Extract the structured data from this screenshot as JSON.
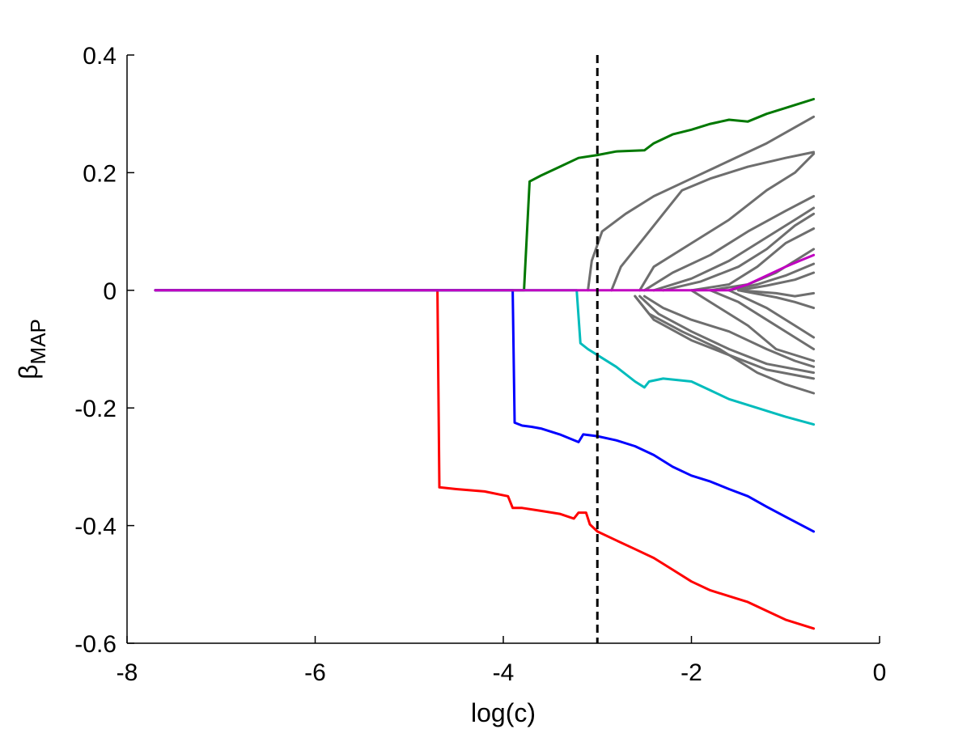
{
  "chart_data": {
    "type": "line",
    "xlabel": "log(c)",
    "ylabel_main": "β",
    "ylabel_sub": "MAP",
    "xlim": [
      -8,
      0
    ],
    "ylim": [
      -0.6,
      0.4
    ],
    "xticks": [
      {
        "value": -8,
        "label": "-8"
      },
      {
        "value": -6,
        "label": "-6"
      },
      {
        "value": -4,
        "label": "-4"
      },
      {
        "value": -2,
        "label": "-2"
      },
      {
        "value": 0,
        "label": "0"
      }
    ],
    "yticks": [
      {
        "value": 0.4,
        "label": "0.4"
      },
      {
        "value": 0.2,
        "label": "0.2"
      },
      {
        "value": 0,
        "label": "0"
      },
      {
        "value": -0.2,
        "label": "-0.2"
      },
      {
        "value": -0.4,
        "label": "-0.4"
      },
      {
        "value": -0.6,
        "label": "-0.6"
      }
    ],
    "reference_line": {
      "x": -3.0,
      "style": "dashed",
      "color": "#000000"
    },
    "colors": {
      "green": "#007800",
      "red": "#ff0000",
      "blue": "#0000ff",
      "cyan": "#00bcbc",
      "magenta": "#c000c0",
      "grey": "#6e6e6e"
    },
    "series": [
      {
        "color": "#6e6e6e",
        "points": [
          [
            -3.1,
            0
          ],
          [
            -3.06,
            0.05
          ],
          [
            -2.95,
            0.1
          ],
          [
            -2.7,
            0.13
          ],
          [
            -2.4,
            0.16
          ],
          [
            -2.0,
            0.19
          ],
          [
            -1.6,
            0.22
          ],
          [
            -1.2,
            0.25
          ],
          [
            -0.7,
            0.295
          ]
        ]
      },
      {
        "color": "#6e6e6e",
        "points": [
          [
            -2.85,
            0
          ],
          [
            -2.75,
            0.04
          ],
          [
            -2.5,
            0.09
          ],
          [
            -2.3,
            0.13
          ],
          [
            -2.1,
            0.17
          ],
          [
            -1.8,
            0.19
          ],
          [
            -1.4,
            0.21
          ],
          [
            -1.0,
            0.225
          ],
          [
            -0.7,
            0.235
          ]
        ]
      },
      {
        "color": "#6e6e6e",
        "points": [
          [
            -2.55,
            0
          ],
          [
            -2.4,
            0.04
          ],
          [
            -2.0,
            0.08
          ],
          [
            -1.6,
            0.12
          ],
          [
            -1.2,
            0.17
          ],
          [
            -0.9,
            0.2
          ],
          [
            -0.7,
            0.232
          ]
        ]
      },
      {
        "color": "#6e6e6e",
        "points": [
          [
            -2.5,
            0
          ],
          [
            -2.2,
            0.03
          ],
          [
            -1.8,
            0.06
          ],
          [
            -1.4,
            0.1
          ],
          [
            -1.0,
            0.135
          ],
          [
            -0.7,
            0.16
          ]
        ]
      },
      {
        "color": "#6e6e6e",
        "points": [
          [
            -2.4,
            0
          ],
          [
            -2.0,
            0.02
          ],
          [
            -1.6,
            0.05
          ],
          [
            -1.2,
            0.09
          ],
          [
            -0.9,
            0.12
          ],
          [
            -0.7,
            0.14
          ]
        ]
      },
      {
        "color": "#6e6e6e",
        "points": [
          [
            -2.3,
            0
          ],
          [
            -1.9,
            0.015
          ],
          [
            -1.5,
            0.04
          ],
          [
            -1.2,
            0.07
          ],
          [
            -0.9,
            0.11
          ],
          [
            -0.7,
            0.13
          ]
        ]
      },
      {
        "color": "#6e6e6e",
        "points": [
          [
            -2.0,
            0
          ],
          [
            -1.6,
            0.01
          ],
          [
            -1.3,
            0.04
          ],
          [
            -1.0,
            0.08
          ],
          [
            -0.7,
            0.105
          ]
        ]
      },
      {
        "color": "#6e6e6e",
        "points": [
          [
            -1.8,
            0
          ],
          [
            -1.4,
            0.01
          ],
          [
            -1.1,
            0.03
          ],
          [
            -0.9,
            0.05
          ],
          [
            -0.7,
            0.07
          ]
        ]
      },
      {
        "color": "#6e6e6e",
        "points": [
          [
            -1.6,
            0
          ],
          [
            -1.3,
            0.01
          ],
          [
            -1.0,
            0.025
          ],
          [
            -0.7,
            0.045
          ]
        ]
      },
      {
        "color": "#6e6e6e",
        "points": [
          [
            -1.5,
            0
          ],
          [
            -1.2,
            0.008
          ],
          [
            -0.9,
            0.018
          ],
          [
            -0.7,
            0.03
          ]
        ]
      },
      {
        "color": "#6e6e6e",
        "points": [
          [
            -1.5,
            0
          ],
          [
            -1.1,
            -0.005
          ],
          [
            -0.9,
            -0.01
          ],
          [
            -0.7,
            -0.005
          ]
        ]
      },
      {
        "color": "#6e6e6e",
        "points": [
          [
            -1.5,
            0
          ],
          [
            -1.1,
            -0.012
          ],
          [
            -0.9,
            -0.02
          ],
          [
            -0.7,
            -0.03
          ]
        ]
      },
      {
        "color": "#6e6e6e",
        "points": [
          [
            -1.6,
            0
          ],
          [
            -1.2,
            -0.03
          ],
          [
            -0.9,
            -0.06
          ],
          [
            -0.7,
            -0.08
          ]
        ]
      },
      {
        "color": "#6e6e6e",
        "points": [
          [
            -1.8,
            0
          ],
          [
            -1.5,
            -0.02
          ],
          [
            -1.2,
            -0.05
          ],
          [
            -0.9,
            -0.08
          ],
          [
            -0.7,
            -0.1
          ]
        ]
      },
      {
        "color": "#6e6e6e",
        "points": [
          [
            -2.0,
            0
          ],
          [
            -1.7,
            -0.03
          ],
          [
            -1.4,
            -0.06
          ],
          [
            -1.1,
            -0.1
          ],
          [
            -0.7,
            -0.12
          ]
        ]
      },
      {
        "color": "#6e6e6e",
        "points": [
          [
            -2.5,
            -0.01
          ],
          [
            -2.3,
            -0.03
          ],
          [
            -2.0,
            -0.05
          ],
          [
            -1.6,
            -0.07
          ],
          [
            -1.2,
            -0.1
          ],
          [
            -0.9,
            -0.12
          ],
          [
            -0.7,
            -0.13
          ]
        ]
      },
      {
        "color": "#6e6e6e",
        "points": [
          [
            -2.55,
            -0.01
          ],
          [
            -2.35,
            -0.04
          ],
          [
            -2.0,
            -0.07
          ],
          [
            -1.6,
            -0.1
          ],
          [
            -1.2,
            -0.125
          ],
          [
            -0.7,
            -0.14
          ]
        ]
      },
      {
        "color": "#6e6e6e",
        "points": [
          [
            -2.6,
            -0.01
          ],
          [
            -2.4,
            -0.05
          ],
          [
            -2.0,
            -0.085
          ],
          [
            -1.6,
            -0.11
          ],
          [
            -1.2,
            -0.135
          ],
          [
            -0.7,
            -0.15
          ]
        ]
      },
      {
        "color": "#6e6e6e",
        "points": [
          [
            -2.6,
            -0.01
          ],
          [
            -2.45,
            -0.04
          ],
          [
            -2.1,
            -0.07
          ],
          [
            -1.7,
            -0.1
          ],
          [
            -1.3,
            -0.14
          ],
          [
            -1.0,
            -0.16
          ],
          [
            -0.7,
            -0.175
          ]
        ]
      },
      {
        "color": "#007800",
        "points": [
          [
            -7.7,
            0
          ],
          [
            -3.78,
            0
          ],
          [
            -3.72,
            0.185
          ],
          [
            -3.6,
            0.195
          ],
          [
            -3.4,
            0.21
          ],
          [
            -3.2,
            0.225
          ],
          [
            -3.0,
            0.23
          ],
          [
            -2.8,
            0.236
          ],
          [
            -2.5,
            0.238
          ],
          [
            -2.4,
            0.25
          ],
          [
            -2.2,
            0.265
          ],
          [
            -2.0,
            0.273
          ],
          [
            -1.8,
            0.283
          ],
          [
            -1.6,
            0.29
          ],
          [
            -1.4,
            0.287
          ],
          [
            -1.2,
            0.3
          ],
          [
            -1.0,
            0.31
          ],
          [
            -0.7,
            0.325
          ]
        ]
      },
      {
        "color": "#ff0000",
        "points": [
          [
            -7.7,
            0
          ],
          [
            -4.7,
            0
          ],
          [
            -4.68,
            -0.335
          ],
          [
            -4.5,
            -0.338
          ],
          [
            -4.2,
            -0.342
          ],
          [
            -3.95,
            -0.35
          ],
          [
            -3.9,
            -0.37
          ],
          [
            -3.8,
            -0.37
          ],
          [
            -3.6,
            -0.375
          ],
          [
            -3.4,
            -0.38
          ],
          [
            -3.25,
            -0.388
          ],
          [
            -3.2,
            -0.378
          ],
          [
            -3.12,
            -0.378
          ],
          [
            -3.08,
            -0.398
          ],
          [
            -3.0,
            -0.41
          ],
          [
            -2.8,
            -0.425
          ],
          [
            -2.6,
            -0.44
          ],
          [
            -2.4,
            -0.455
          ],
          [
            -2.2,
            -0.475
          ],
          [
            -2.0,
            -0.495
          ],
          [
            -1.8,
            -0.51
          ],
          [
            -1.6,
            -0.52
          ],
          [
            -1.4,
            -0.53
          ],
          [
            -1.2,
            -0.545
          ],
          [
            -1.0,
            -0.56
          ],
          [
            -0.7,
            -0.575
          ]
        ]
      },
      {
        "color": "#0000ff",
        "points": [
          [
            -7.7,
            0
          ],
          [
            -3.9,
            0
          ],
          [
            -3.88,
            -0.225
          ],
          [
            -3.8,
            -0.23
          ],
          [
            -3.7,
            -0.232
          ],
          [
            -3.6,
            -0.235
          ],
          [
            -3.4,
            -0.245
          ],
          [
            -3.2,
            -0.258
          ],
          [
            -3.15,
            -0.245
          ],
          [
            -3.0,
            -0.248
          ],
          [
            -2.8,
            -0.255
          ],
          [
            -2.6,
            -0.265
          ],
          [
            -2.4,
            -0.28
          ],
          [
            -2.2,
            -0.3
          ],
          [
            -2.0,
            -0.315
          ],
          [
            -1.8,
            -0.325
          ],
          [
            -1.6,
            -0.338
          ],
          [
            -1.4,
            -0.35
          ],
          [
            -1.2,
            -0.368
          ],
          [
            -1.0,
            -0.385
          ],
          [
            -0.7,
            -0.41
          ]
        ]
      },
      {
        "color": "#00bcbc",
        "points": [
          [
            -7.7,
            0
          ],
          [
            -3.22,
            0
          ],
          [
            -3.18,
            -0.09
          ],
          [
            -3.1,
            -0.1
          ],
          [
            -3.0,
            -0.11
          ],
          [
            -2.8,
            -0.13
          ],
          [
            -2.6,
            -0.155
          ],
          [
            -2.5,
            -0.165
          ],
          [
            -2.45,
            -0.155
          ],
          [
            -2.3,
            -0.15
          ],
          [
            -2.0,
            -0.155
          ],
          [
            -1.8,
            -0.17
          ],
          [
            -1.6,
            -0.185
          ],
          [
            -1.4,
            -0.195
          ],
          [
            -1.2,
            -0.205
          ],
          [
            -1.0,
            -0.215
          ],
          [
            -0.7,
            -0.228
          ]
        ]
      },
      {
        "color": "#c000c0",
        "points": [
          [
            -7.7,
            0
          ],
          [
            -1.6,
            0
          ],
          [
            -1.4,
            0.01
          ],
          [
            -1.2,
            0.025
          ],
          [
            -1.0,
            0.04
          ],
          [
            -0.85,
            0.05
          ],
          [
            -0.7,
            0.06
          ]
        ]
      }
    ]
  }
}
